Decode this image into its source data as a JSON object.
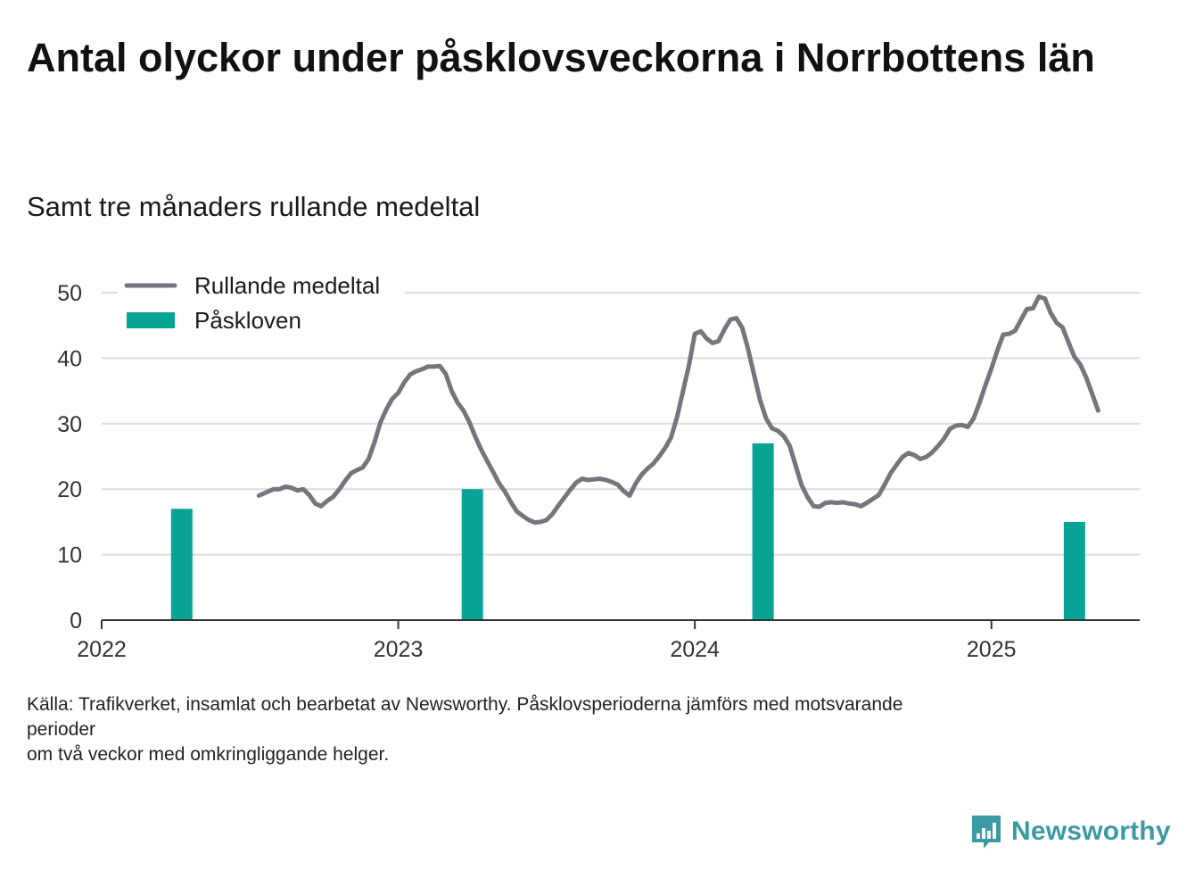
{
  "title": "Antal olyckor under påsklovsveckorna i Norrbottens län",
  "subtitle": "Samt tre månaders rullande medeltal",
  "footnote": {
    "line1": "Källa: Trafikverket, insamlat och bearbetat av Newsworthy. Påsklovsperioderna jämförs med motsvarande",
    "line2": "perioder",
    "line3": "om två veckor med omkringliggande helger."
  },
  "brand": {
    "name": "Newsworthy",
    "icon": "newsworthy-logo-icon",
    "color": "#3c9aa2"
  },
  "chart_data": {
    "type": "bar+line",
    "title": "Antal olyckor under påsklovsveckorna i Norrbottens län",
    "subtitle": "Samt tre månaders rullande medeltal",
    "xlabel": "",
    "ylabel": "",
    "xlim": [
      2022.0,
      2025.5
    ],
    "ylim": [
      0,
      50
    ],
    "x_ticks": [
      2022,
      2023,
      2024,
      2025
    ],
    "y_ticks": [
      0,
      10,
      20,
      30,
      40,
      50
    ],
    "grid": true,
    "legend_position": "top-left",
    "series": [
      {
        "name": "Rullande medeltal",
        "type": "line",
        "color": "#75757d",
        "points": [
          [
            2022.53,
            19.0
          ],
          [
            2022.56,
            19.6
          ],
          [
            2022.58,
            20.0
          ],
          [
            2022.6,
            20.0
          ],
          [
            2022.62,
            20.4
          ],
          [
            2022.64,
            20.2
          ],
          [
            2022.66,
            19.8
          ],
          [
            2022.68,
            20.0
          ],
          [
            2022.7,
            19.1
          ],
          [
            2022.72,
            17.8
          ],
          [
            2022.74,
            17.4
          ],
          [
            2022.76,
            18.2
          ],
          [
            2022.78,
            18.8
          ],
          [
            2022.8,
            19.9
          ],
          [
            2022.82,
            21.2
          ],
          [
            2022.84,
            22.4
          ],
          [
            2022.86,
            22.9
          ],
          [
            2022.88,
            23.3
          ],
          [
            2022.9,
            24.6
          ],
          [
            2022.92,
            27.2
          ],
          [
            2022.94,
            30.2
          ],
          [
            2022.96,
            32.2
          ],
          [
            2022.98,
            33.8
          ],
          [
            2023.0,
            34.7
          ],
          [
            2023.02,
            36.3
          ],
          [
            2023.04,
            37.5
          ],
          [
            2023.06,
            38.0
          ],
          [
            2023.08,
            38.3
          ],
          [
            2023.1,
            38.7
          ],
          [
            2023.12,
            38.7
          ],
          [
            2023.14,
            38.8
          ],
          [
            2023.16,
            37.6
          ],
          [
            2023.18,
            35.0
          ],
          [
            2023.2,
            33.2
          ],
          [
            2023.22,
            32.0
          ],
          [
            2023.24,
            30.2
          ],
          [
            2023.26,
            28.0
          ],
          [
            2023.28,
            26.0
          ],
          [
            2023.3,
            24.3
          ],
          [
            2023.32,
            22.6
          ],
          [
            2023.34,
            20.9
          ],
          [
            2023.36,
            19.6
          ],
          [
            2023.38,
            18.0
          ],
          [
            2023.4,
            16.6
          ],
          [
            2023.42,
            15.9
          ],
          [
            2023.44,
            15.3
          ],
          [
            2023.46,
            14.9
          ],
          [
            2023.48,
            15.0
          ],
          [
            2023.5,
            15.3
          ],
          [
            2023.52,
            16.2
          ],
          [
            2023.54,
            17.5
          ],
          [
            2023.56,
            18.7
          ],
          [
            2023.58,
            19.9
          ],
          [
            2023.6,
            21.0
          ],
          [
            2023.62,
            21.6
          ],
          [
            2023.64,
            21.4
          ],
          [
            2023.66,
            21.5
          ],
          [
            2023.68,
            21.6
          ],
          [
            2023.7,
            21.4
          ],
          [
            2023.72,
            21.1
          ],
          [
            2023.74,
            20.7
          ],
          [
            2023.76,
            19.7
          ],
          [
            2023.78,
            19.0
          ],
          [
            2023.8,
            20.8
          ],
          [
            2023.82,
            22.2
          ],
          [
            2023.84,
            23.1
          ],
          [
            2023.86,
            23.9
          ],
          [
            2023.88,
            25.0
          ],
          [
            2023.9,
            26.3
          ],
          [
            2023.92,
            27.9
          ],
          [
            2023.94,
            31.0
          ],
          [
            2023.96,
            34.9
          ],
          [
            2023.98,
            38.9
          ],
          [
            2024.0,
            43.7
          ],
          [
            2024.02,
            44.1
          ],
          [
            2024.04,
            43.0
          ],
          [
            2024.06,
            42.3
          ],
          [
            2024.08,
            42.6
          ],
          [
            2024.1,
            44.4
          ],
          [
            2024.12,
            45.9
          ],
          [
            2024.14,
            46.1
          ],
          [
            2024.16,
            44.6
          ],
          [
            2024.18,
            41.3
          ],
          [
            2024.2,
            37.4
          ],
          [
            2024.22,
            33.6
          ],
          [
            2024.24,
            30.8
          ],
          [
            2024.26,
            29.3
          ],
          [
            2024.28,
            28.9
          ],
          [
            2024.3,
            28.1
          ],
          [
            2024.32,
            26.6
          ],
          [
            2024.34,
            23.6
          ],
          [
            2024.36,
            20.6
          ],
          [
            2024.38,
            18.8
          ],
          [
            2024.4,
            17.4
          ],
          [
            2024.42,
            17.3
          ],
          [
            2024.44,
            17.9
          ],
          [
            2024.46,
            18.0
          ],
          [
            2024.48,
            17.9
          ],
          [
            2024.5,
            18.0
          ],
          [
            2024.52,
            17.8
          ],
          [
            2024.54,
            17.7
          ],
          [
            2024.56,
            17.4
          ],
          [
            2024.58,
            17.9
          ],
          [
            2024.6,
            18.5
          ],
          [
            2024.62,
            19.1
          ],
          [
            2024.64,
            20.7
          ],
          [
            2024.66,
            22.4
          ],
          [
            2024.68,
            23.7
          ],
          [
            2024.7,
            24.9
          ],
          [
            2024.72,
            25.5
          ],
          [
            2024.74,
            25.2
          ],
          [
            2024.76,
            24.6
          ],
          [
            2024.78,
            24.9
          ],
          [
            2024.8,
            25.6
          ],
          [
            2024.82,
            26.6
          ],
          [
            2024.84,
            27.7
          ],
          [
            2024.86,
            29.2
          ],
          [
            2024.88,
            29.7
          ],
          [
            2024.9,
            29.8
          ],
          [
            2024.92,
            29.5
          ],
          [
            2024.94,
            30.8
          ],
          [
            2024.96,
            33.2
          ],
          [
            2024.98,
            35.9
          ],
          [
            2025.0,
            38.4
          ],
          [
            2025.02,
            41.2
          ],
          [
            2025.04,
            43.6
          ],
          [
            2025.06,
            43.7
          ],
          [
            2025.08,
            44.2
          ],
          [
            2025.1,
            45.9
          ],
          [
            2025.12,
            47.5
          ],
          [
            2025.14,
            47.6
          ],
          [
            2025.16,
            49.4
          ],
          [
            2025.18,
            49.1
          ],
          [
            2025.2,
            46.9
          ],
          [
            2025.22,
            45.4
          ],
          [
            2025.24,
            44.7
          ],
          [
            2025.26,
            42.4
          ],
          [
            2025.28,
            40.2
          ],
          [
            2025.3,
            39.0
          ],
          [
            2025.32,
            37.0
          ],
          [
            2025.34,
            34.5
          ],
          [
            2025.36,
            32.0
          ]
        ]
      },
      {
        "name": "Påskloven",
        "type": "bar",
        "color": "#09a396",
        "points": [
          [
            2022.27,
            17
          ],
          [
            2023.25,
            20
          ],
          [
            2024.23,
            27
          ],
          [
            2025.28,
            15
          ]
        ]
      }
    ]
  }
}
